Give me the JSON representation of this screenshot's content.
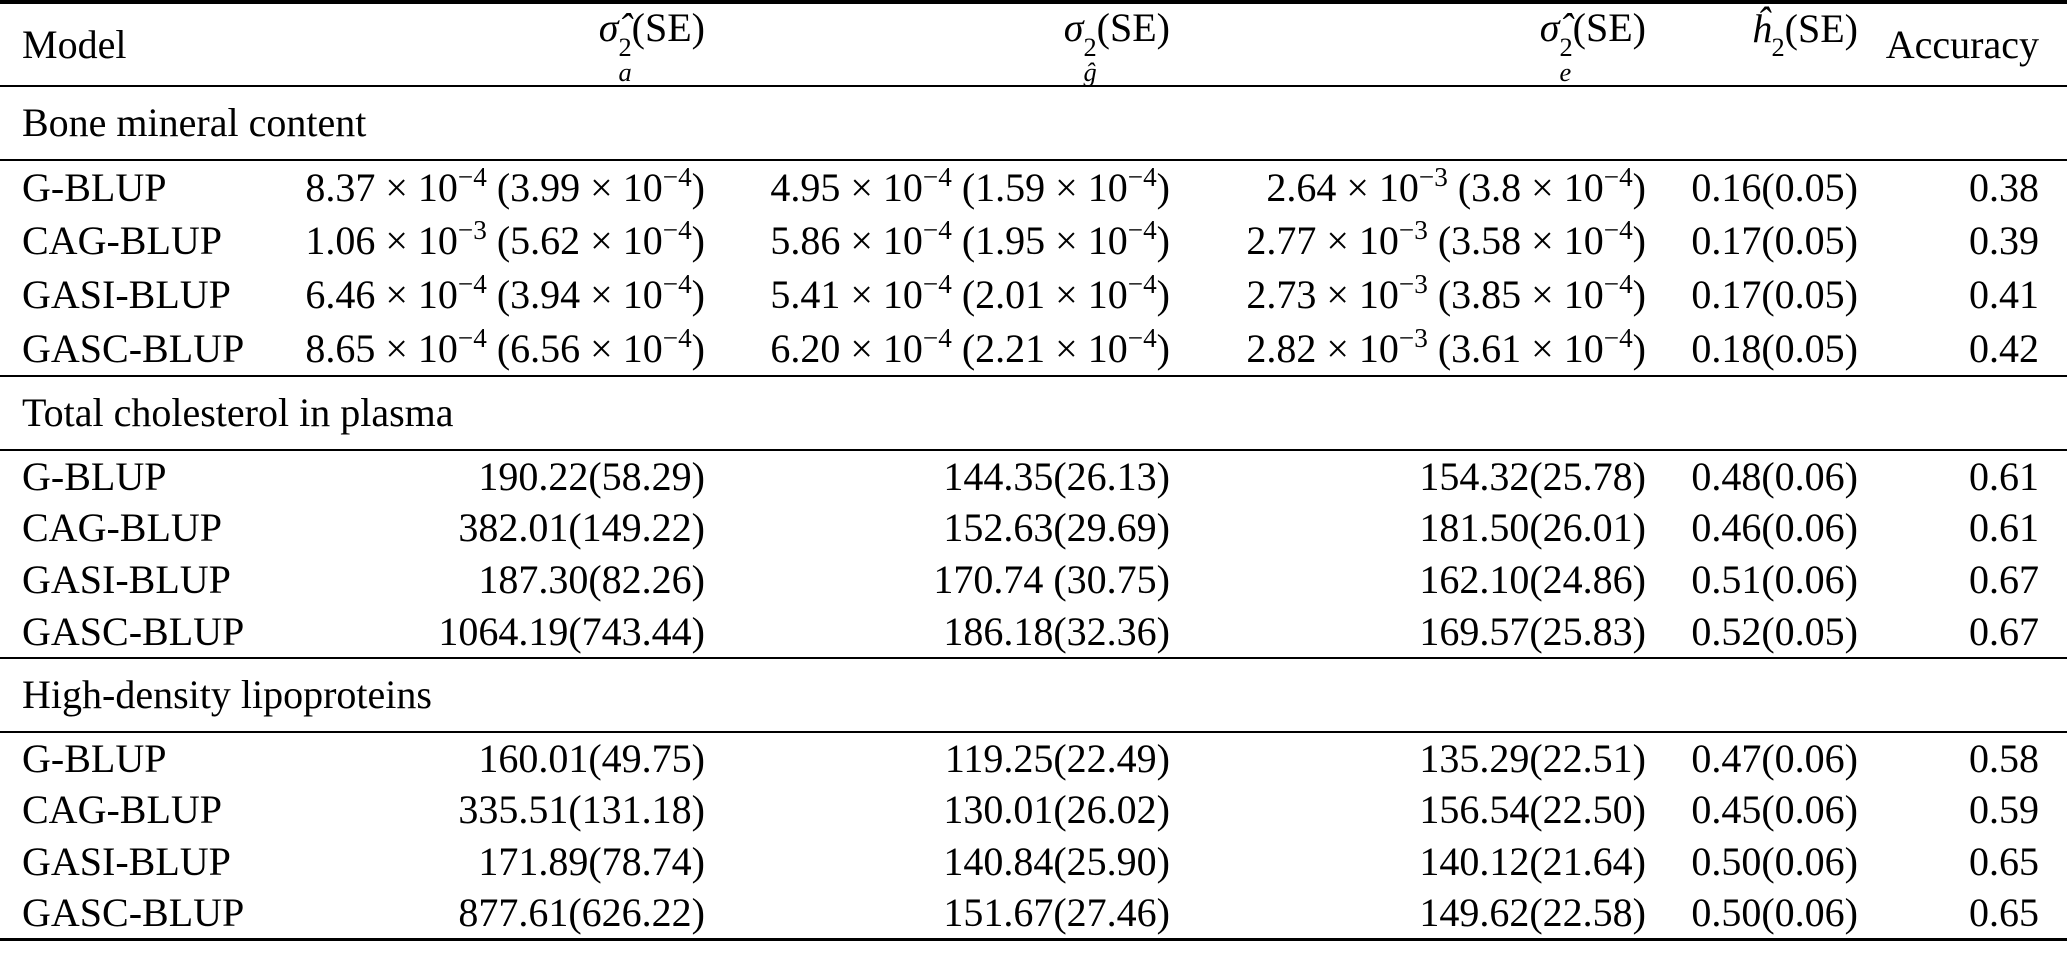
{
  "table": {
    "columns": [
      {
        "label": "Model"
      },
      {
        "base": "σ̂",
        "sup": "2",
        "sub": "a",
        "rest": "(SE)"
      },
      {
        "base": "σ",
        "sup": "2",
        "sub": "ĝ",
        "rest": "(SE)"
      },
      {
        "base": "σ̂",
        "sup": "2",
        "sub": "e",
        "rest": "(SE)"
      },
      {
        "base": "ĥ",
        "sup": "2",
        "sub": "",
        "rest": "(SE)"
      },
      {
        "label": "Accuracy"
      }
    ],
    "sections": [
      {
        "title": "Bone mineral content",
        "rows": [
          {
            "model": "G-BLUP",
            "cells": [
              "8.37 × 10^{−4} (3.99 × 10^{−4})",
              "4.95 × 10^{−4} (1.59 × 10^{−4})",
              "2.64 × 10^{−3} (3.8 × 10^{−4})",
              "0.16(0.05)",
              "0.38"
            ]
          },
          {
            "model": "CAG-BLUP",
            "cells": [
              "1.06 × 10^{−3} (5.62 × 10^{−4})",
              "5.86 × 10^{−4} (1.95 × 10^{−4})",
              "2.77 × 10^{−3} (3.58 × 10^{−4})",
              "0.17(0.05)",
              "0.39"
            ]
          },
          {
            "model": "GASI-BLUP",
            "cells": [
              "6.46 × 10^{−4} (3.94 × 10^{−4})",
              "5.41 × 10^{−4} (2.01 × 10^{−4})",
              "2.73 × 10^{−3} (3.85 × 10^{−4})",
              "0.17(0.05)",
              "0.41"
            ]
          },
          {
            "model": "GASC-BLUP",
            "cells": [
              "8.65 × 10^{−4} (6.56 × 10^{−4})",
              "6.20 × 10^{−4} (2.21 × 10^{−4})",
              "2.82 × 10^{−3} (3.61 × 10^{−4})",
              "0.18(0.05)",
              "0.42"
            ]
          }
        ]
      },
      {
        "title": "Total cholesterol in plasma",
        "rows": [
          {
            "model": "G-BLUP",
            "cells": [
              "190.22(58.29)",
              "144.35(26.13)",
              "154.32(25.78)",
              "0.48(0.06)",
              "0.61"
            ]
          },
          {
            "model": "CAG-BLUP",
            "cells": [
              "382.01(149.22)",
              "152.63(29.69)",
              "181.50(26.01)",
              "0.46(0.06)",
              "0.61"
            ]
          },
          {
            "model": "GASI-BLUP",
            "cells": [
              "187.30(82.26)",
              "170.74 (30.75)",
              "162.10(24.86)",
              "0.51(0.06)",
              "0.67"
            ]
          },
          {
            "model": "GASC-BLUP",
            "cells": [
              "1064.19(743.44)",
              "186.18(32.36)",
              "169.57(25.83)",
              "0.52(0.05)",
              "0.67"
            ]
          }
        ]
      },
      {
        "title": "High-density lipoproteins",
        "rows": [
          {
            "model": "G-BLUP",
            "cells": [
              "160.01(49.75)",
              "119.25(22.49)",
              "135.29(22.51)",
              "0.47(0.06)",
              "0.58"
            ]
          },
          {
            "model": "CAG-BLUP",
            "cells": [
              "335.51(131.18)",
              "130.01(26.02)",
              "156.54(22.50)",
              "0.45(0.06)",
              "0.59"
            ]
          },
          {
            "model": "GASI-BLUP",
            "cells": [
              "171.89(78.74)",
              "140.84(25.90)",
              "140.12(21.64)",
              "0.50(0.06)",
              "0.65"
            ]
          },
          {
            "model": "GASC-BLUP",
            "cells": [
              "877.61(626.22)",
              "151.67(27.46)",
              "149.62(22.58)",
              "0.50(0.06)",
              "0.65"
            ]
          }
        ]
      }
    ]
  }
}
